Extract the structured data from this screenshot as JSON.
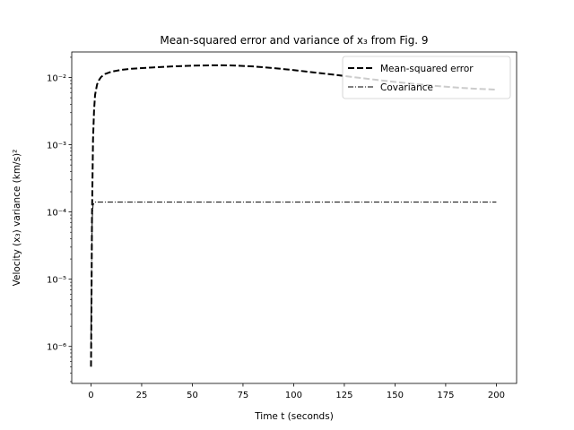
{
  "chart_data": {
    "type": "line",
    "title": "Mean-squared error and variance of x₃ from Fig. 9",
    "xlabel": "Time t (seconds)",
    "ylabel": "Velocity (x₃) variance (km/s)²",
    "xlim": [
      -9.5,
      210
    ],
    "ylim_log10": [
      -6.55,
      -1.62
    ],
    "yscale": "log",
    "x_ticks": [
      0,
      25,
      50,
      75,
      100,
      125,
      150,
      175,
      200
    ],
    "x_tick_labels": [
      "0",
      "25",
      "50",
      "75",
      "100",
      "125",
      "150",
      "175",
      "200"
    ],
    "y_ticks_log10": [
      -6,
      -5,
      -4,
      -3,
      -2
    ],
    "y_tick_labels": [
      "10⁻⁶",
      "10⁻⁵",
      "10⁻⁴",
      "10⁻³",
      "10⁻²"
    ],
    "grid": false,
    "legend_position": "top-right",
    "series": [
      {
        "name": "Mean-squared error",
        "style": "dashed",
        "color": "#000000",
        "x": [
          0,
          0.2,
          0.5,
          1,
          1.5,
          2,
          3,
          4,
          5,
          7,
          10,
          15,
          20,
          30,
          40,
          50,
          60,
          65,
          70,
          80,
          90,
          100,
          110,
          120,
          130,
          140,
          150,
          160,
          170,
          180,
          190,
          200
        ],
        "y": [
          5e-07,
          3e-06,
          9e-05,
          0.0012,
          0.0032,
          0.0055,
          0.0079,
          0.0092,
          0.0102,
          0.0113,
          0.0122,
          0.013,
          0.0135,
          0.0141,
          0.0146,
          0.015,
          0.0152,
          0.0152,
          0.0151,
          0.0146,
          0.0138,
          0.0129,
          0.0119,
          0.011,
          0.0101,
          0.0093,
          0.0086,
          0.008,
          0.0075,
          0.0071,
          0.0068,
          0.0066
        ]
      },
      {
        "name": "Covariance",
        "style": "dashdot",
        "color": "#000000",
        "x": [
          0,
          0.3,
          0.6,
          1,
          1.5,
          2,
          5,
          50,
          100,
          150,
          200
        ],
        "y": [
          1e-06,
          1.5e-05,
          8e-05,
          0.000125,
          0.000138,
          0.00014,
          0.00014,
          0.00014,
          0.00014,
          0.00014,
          0.00014
        ]
      }
    ]
  }
}
